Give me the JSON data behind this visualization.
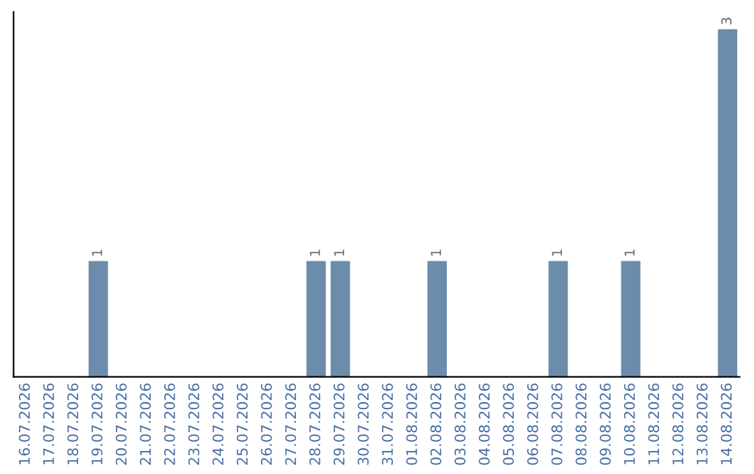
{
  "chart_data": {
    "type": "bar",
    "categories": [
      "16.07.2026",
      "17.07.2026",
      "18.07.2026",
      "19.07.2026",
      "20.07.2026",
      "21.07.2026",
      "22.07.2026",
      "23.07.2026",
      "24.07.2026",
      "25.07.2026",
      "26.07.2026",
      "27.07.2026",
      "28.07.2026",
      "29.07.2026",
      "30.07.2026",
      "31.07.2026",
      "01.08.2026",
      "02.08.2026",
      "03.08.2026",
      "04.08.2026",
      "05.08.2026",
      "06.08.2026",
      "07.08.2026",
      "08.08.2026",
      "09.08.2026",
      "10.08.2026",
      "11.08.2026",
      "12.08.2026",
      "13.08.2026",
      "14.08.2026"
    ],
    "values": [
      0,
      0,
      0,
      1,
      0,
      0,
      0,
      0,
      0,
      0,
      0,
      0,
      1,
      1,
      0,
      0,
      0,
      1,
      0,
      0,
      0,
      0,
      1,
      0,
      0,
      1,
      0,
      0,
      0,
      3
    ],
    "value_labels": [
      null,
      null,
      null,
      "1",
      null,
      null,
      null,
      null,
      null,
      null,
      null,
      null,
      "1",
      "1",
      null,
      null,
      null,
      "1",
      null,
      null,
      null,
      null,
      "1",
      null,
      null,
      "1",
      null,
      null,
      null,
      "3"
    ],
    "color": "#6b8caa",
    "grid": false,
    "legend": false
  }
}
